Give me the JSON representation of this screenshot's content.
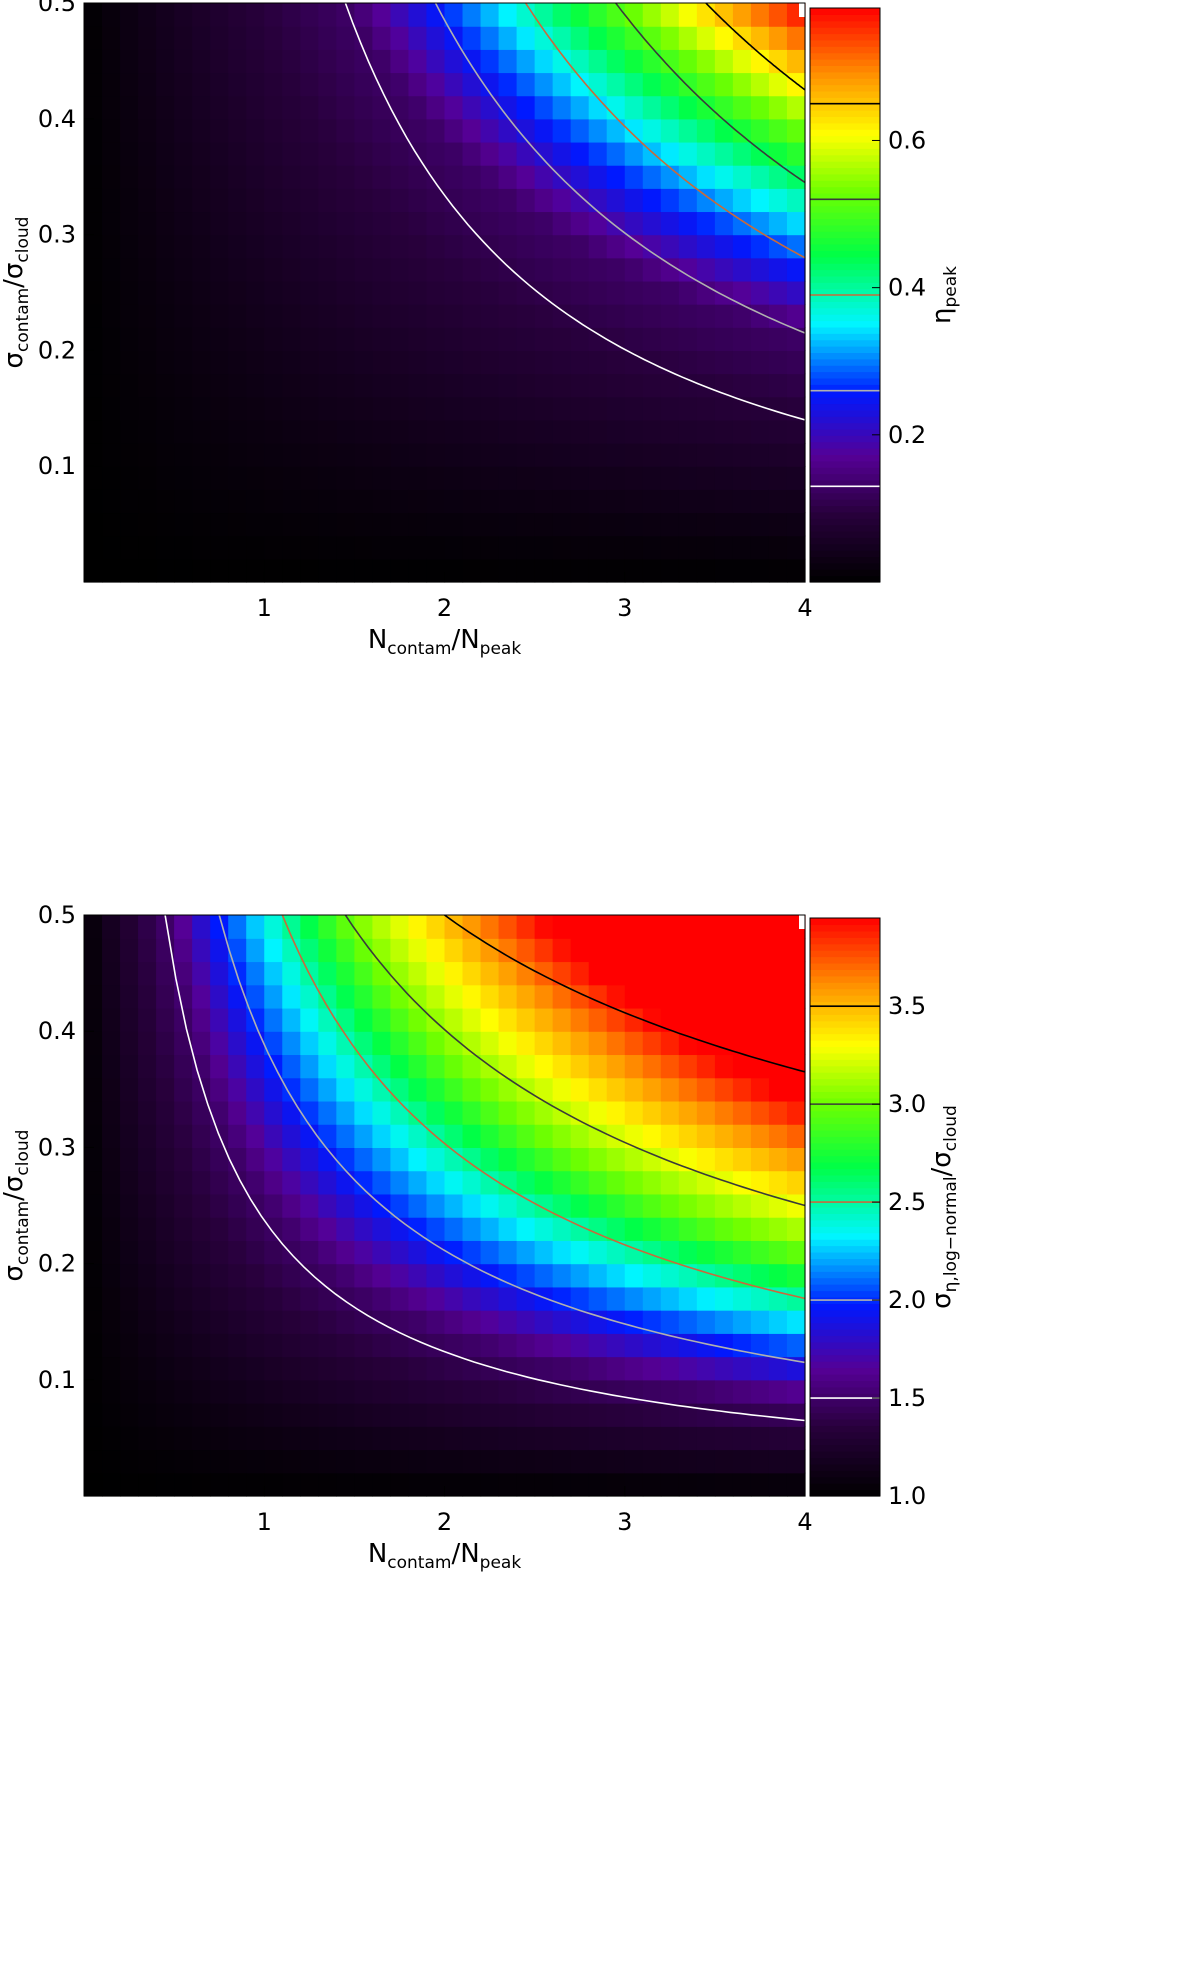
{
  "chart_data": [
    {
      "type": "heatmap",
      "x_quantity": "N_contam / N_peak",
      "y_quantity": "σ_contam / σ_cloud",
      "xlim": [
        0,
        4
      ],
      "ylim": [
        0,
        0.5
      ],
      "x_ticks": [
        "1",
        "2",
        "3",
        "4"
      ],
      "y_ticks": [
        "0.1",
        "0.2",
        "0.3",
        "0.4",
        "0.5"
      ],
      "xlabel": {
        "main": "N",
        "sub1": "contam",
        "sep": "/N",
        "sub2": "peak"
      },
      "ylabel": {
        "main": "σ",
        "sub1": "contam",
        "sep": "/σ",
        "sub2": "cloud"
      },
      "colorbar": {
        "label": {
          "main": "η",
          "sub": "peak"
        },
        "range": [
          0.0,
          0.78
        ],
        "ticks": [
          "0.2",
          "0.4",
          "0.6"
        ]
      },
      "colormap": "rainbow (black-purple-blue-cyan-green-yellow-red)",
      "contours": [
        {
          "level": 0.13,
          "color": "#ffffff",
          "x_at_top": 1.45,
          "y_at_right": 0.14
        },
        {
          "level": 0.26,
          "color": "#b0b0b0",
          "x_at_top": 1.95,
          "y_at_right": 0.215
        },
        {
          "level": 0.39,
          "color": "#c86a3c",
          "x_at_top": 2.45,
          "y_at_right": 0.28
        },
        {
          "level": 0.52,
          "color": "#3a3a3a",
          "x_at_top": 2.95,
          "y_at_right": 0.345
        },
        {
          "level": 0.65,
          "color": "#000000",
          "x_at_top": 3.45,
          "y_at_right": 0.425
        }
      ]
    },
    {
      "type": "heatmap",
      "x_quantity": "N_contam / N_peak",
      "y_quantity": "σ_contam / σ_cloud",
      "xlim": [
        0,
        4
      ],
      "ylim": [
        0,
        0.5
      ],
      "x_ticks": [
        "1",
        "2",
        "3",
        "4"
      ],
      "y_ticks": [
        "0.1",
        "0.2",
        "0.3",
        "0.4",
        "0.5"
      ],
      "xlabel": {
        "main": "N",
        "sub1": "contam",
        "sep": "/N",
        "sub2": "peak"
      },
      "ylabel": {
        "main": "σ",
        "sub1": "contam",
        "sep": "/σ",
        "sub2": "cloud"
      },
      "colorbar": {
        "label": {
          "main": "σ",
          "sub": "η,log−normal",
          "sep": "/σ",
          "sub2": "cloud"
        },
        "range": [
          1.0,
          3.95
        ],
        "ticks": [
          "1.0",
          "1.5",
          "2.0",
          "2.5",
          "3.0",
          "3.5"
        ]
      },
      "colormap": "rainbow (black-purple-blue-cyan-green-yellow-red)",
      "contours": [
        {
          "level": 1.5,
          "color": "#ffffff",
          "x_at_top": 0.45,
          "y_at_right": 0.065
        },
        {
          "level": 2.0,
          "color": "#b0b0b0",
          "x_at_top": 0.75,
          "y_at_right": 0.115
        },
        {
          "level": 2.5,
          "color": "#c86a3c",
          "x_at_top": 1.1,
          "y_at_right": 0.17
        },
        {
          "level": 3.0,
          "color": "#3a3a3a",
          "x_at_top": 1.45,
          "y_at_right": 0.25
        },
        {
          "level": 3.5,
          "color": "#000000",
          "x_at_top": 2.0,
          "y_at_right": 0.365
        }
      ]
    }
  ]
}
